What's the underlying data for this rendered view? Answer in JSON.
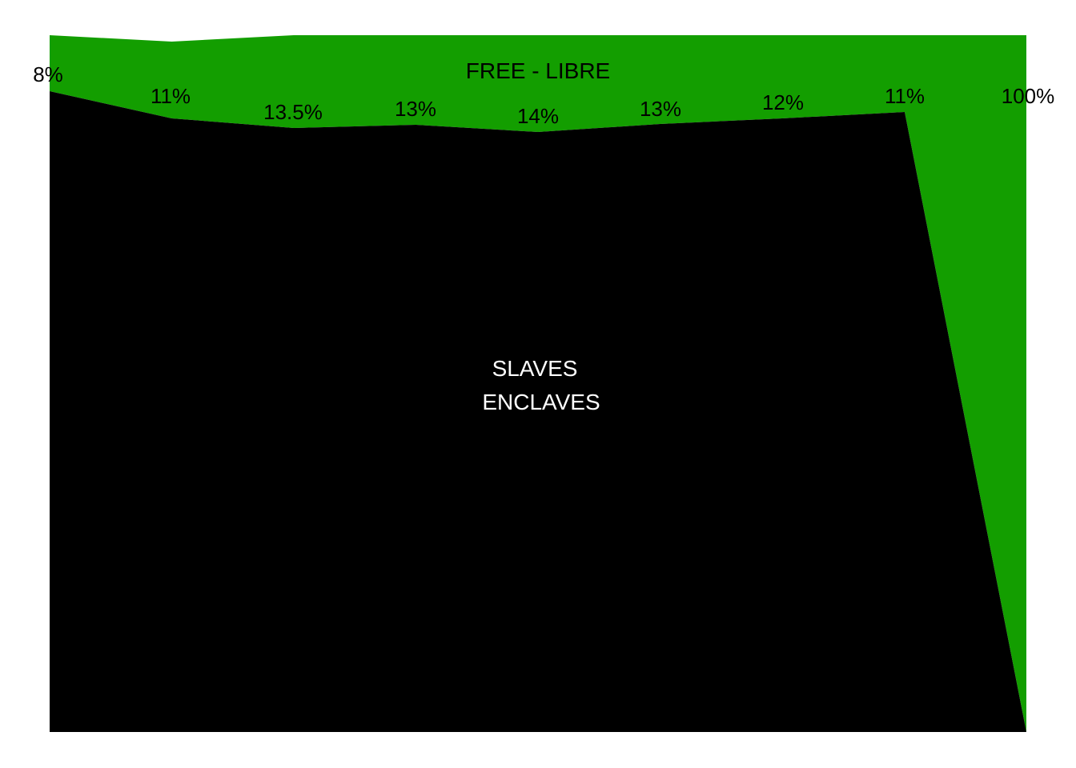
{
  "chart_data": {
    "type": "area",
    "stacked": true,
    "normalized_percent": true,
    "x_count": 9,
    "series": [
      {
        "name": "FREE - LIBRE",
        "color": "#139e00",
        "values": [
          8,
          11,
          13.5,
          13,
          14,
          13,
          12,
          11,
          100
        ]
      },
      {
        "name": "SLAVES ENCLAVES",
        "color": "#000000",
        "values": [
          92,
          89,
          86.5,
          87,
          86,
          87,
          88,
          89,
          0
        ]
      }
    ],
    "data_labels": [
      "8%",
      "11%",
      "13.5%",
      "13%",
      "14%",
      "13%",
      "12%",
      "11%",
      "100%"
    ],
    "region_labels": {
      "free": "FREE - LIBRE",
      "slaves_line1": "SLAVES",
      "slaves_line2": "ENCLAVES"
    },
    "ylim": [
      0,
      100
    ],
    "grid": false,
    "legend": "none"
  }
}
